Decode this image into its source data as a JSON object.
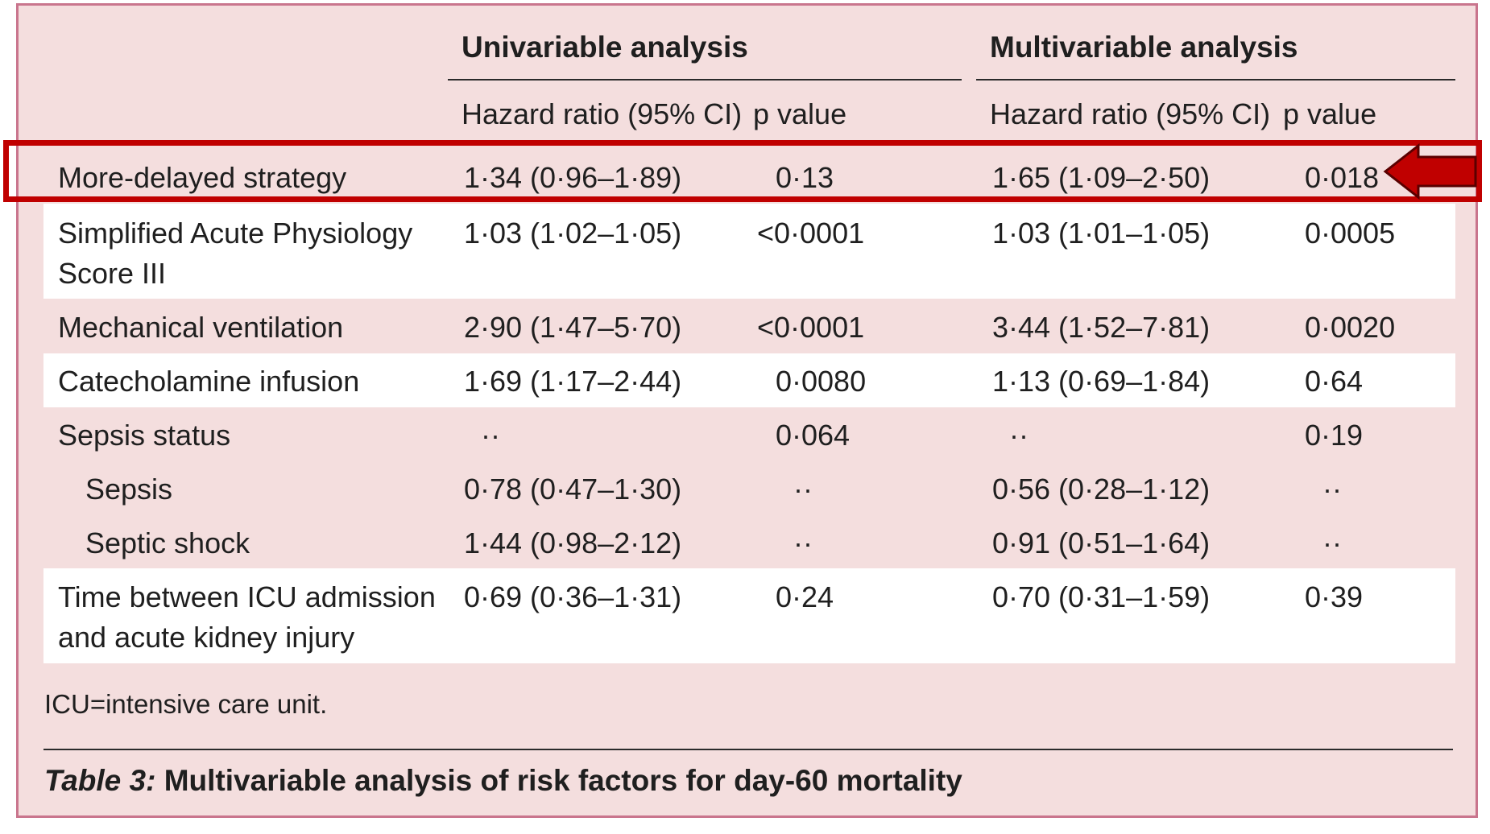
{
  "table": {
    "groups": {
      "univariable": "Univariable analysis",
      "multivariable": "Multivariable analysis"
    },
    "subheaders": {
      "uni_hr": "Hazard ratio (95% CI)",
      "uni_p": "p value",
      "multi_hr": "Hazard ratio (95% CI)",
      "multi_p": "p value"
    },
    "rows": [
      {
        "label": "More-delayed strategy",
        "uni_hr": "1·34 (0·96–1·89)",
        "uni_p": "0·13",
        "multi_hr": "1·65 (1·09–2·50)",
        "multi_p": "0·018"
      },
      {
        "label1": "Simplified Acute Physiology",
        "label2": "Score III",
        "uni_hr": "1·03 (1·02–1·05)",
        "uni_p": "<0·0001",
        "multi_hr": "1·03 (1·01–1·05)",
        "multi_p": "0·0005"
      },
      {
        "label": "Mechanical ventilation",
        "uni_hr": "2·90 (1·47–5·70)",
        "uni_p": "<0·0001",
        "multi_hr": "3·44 (1·52–7·81)",
        "multi_p": "0·0020"
      },
      {
        "label": "Catecholamine infusion",
        "uni_hr": "1·69 (1·17–2·44)",
        "uni_p": "0·0080",
        "multi_hr": "1·13 (0·69–1·84)",
        "multi_p": "0·64"
      },
      {
        "label": "Sepsis status",
        "uni_hr": "··",
        "uni_p": "0·064",
        "multi_hr": "··",
        "multi_p": "0·19"
      },
      {
        "label": "Sepsis",
        "uni_hr": "0·78 (0·47–1·30)",
        "uni_p": "··",
        "multi_hr": "0·56 (0·28–1·12)",
        "multi_p": "··"
      },
      {
        "label": "Septic shock",
        "uni_hr": "1·44 (0·98–2·12)",
        "uni_p": "··",
        "multi_hr": "0·91 (0·51–1·64)",
        "multi_p": "··"
      },
      {
        "label1": "Time between ICU admission",
        "label2": "and acute kidney injury",
        "uni_hr": "0·69 (0·36–1·31)",
        "uni_p": "0·24",
        "multi_hr": "0·70 (0·31–1·59)",
        "multi_p": "0·39"
      }
    ]
  },
  "footnote": "ICU=intensive care unit.",
  "caption": {
    "label": "Table 3:",
    "text": " Multivariable analysis of risk factors for day-60 mortality"
  },
  "colors": {
    "panel_background": "#f4dede",
    "panel_border": "#c9758d",
    "highlight": "#c00000"
  }
}
